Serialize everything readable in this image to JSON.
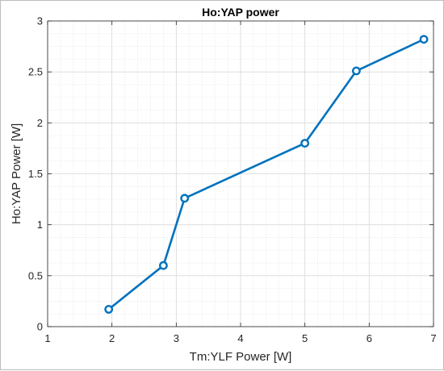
{
  "chart_data": {
    "type": "line",
    "title": "Ho:YAP power",
    "xlabel": "Tm:YLF Power [W]",
    "ylabel": "Ho:YAP Power [W]",
    "xlim": [
      1,
      7
    ],
    "ylim": [
      0,
      3
    ],
    "xticks": [
      1,
      2,
      3,
      4,
      5,
      6,
      7
    ],
    "yticks": [
      0,
      0.5,
      1,
      1.5,
      2,
      2.5,
      3
    ],
    "xtick_labels": [
      "1",
      "2",
      "3",
      "4",
      "5",
      "6",
      "7"
    ],
    "ytick_labels": [
      "0",
      "0.5",
      "1",
      "1.5",
      "2",
      "2.5",
      "3"
    ],
    "grid": true,
    "minor_grid": true,
    "marker": "circle",
    "series": [
      {
        "color": "#0072BD",
        "x": [
          1.95,
          2.8,
          3.13,
          5.0,
          5.8,
          6.85
        ],
        "y": [
          0.17,
          0.6,
          1.26,
          1.8,
          2.51,
          2.82
        ]
      }
    ]
  }
}
